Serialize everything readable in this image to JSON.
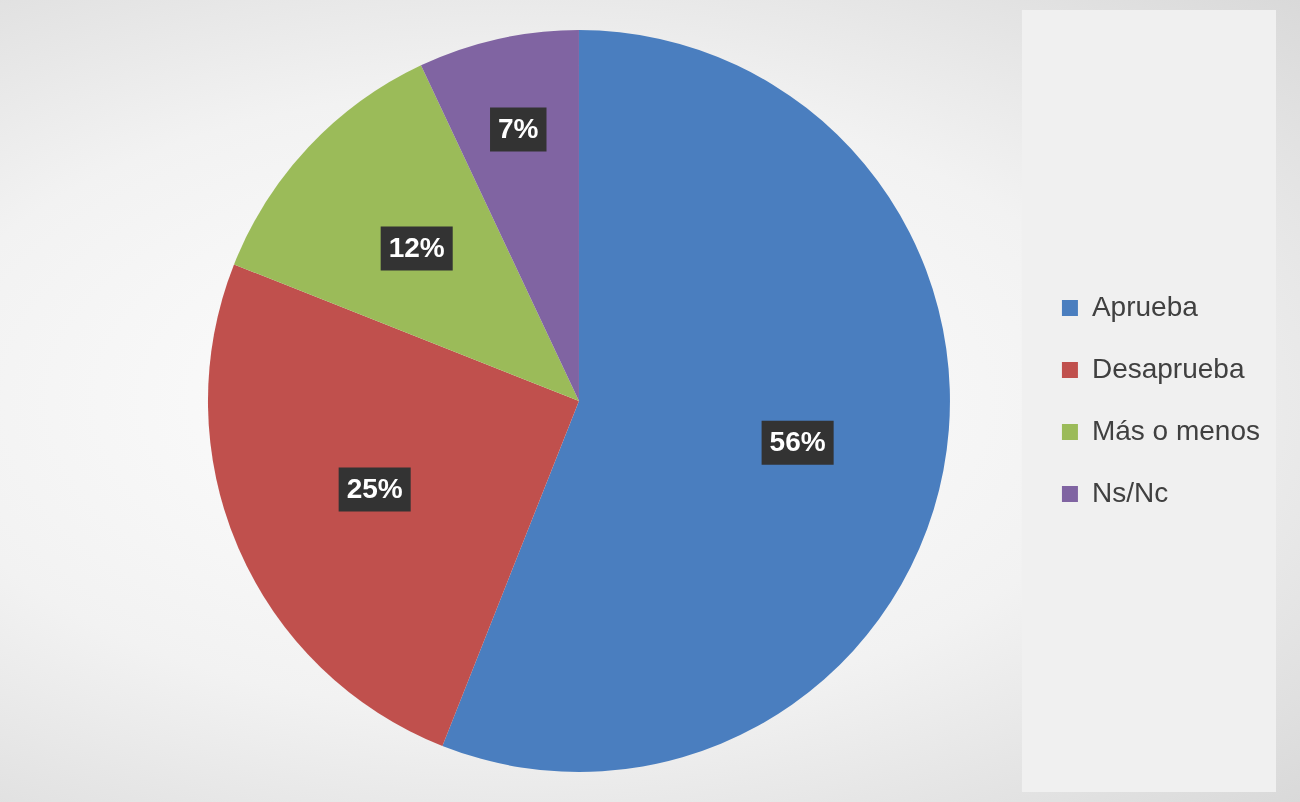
{
  "chart_data": {
    "type": "pie",
    "categories": [
      "Aprueba",
      "Desaprueba",
      "Más o menos",
      "Ns/Nc"
    ],
    "values": [
      56,
      25,
      12,
      7
    ],
    "colors": [
      "#4a7ebf",
      "#c0504d",
      "#9bbb59",
      "#8064a2"
    ],
    "value_labels": [
      "56%",
      "25%",
      "12%",
      "7%"
    ],
    "legend": "right"
  }
}
